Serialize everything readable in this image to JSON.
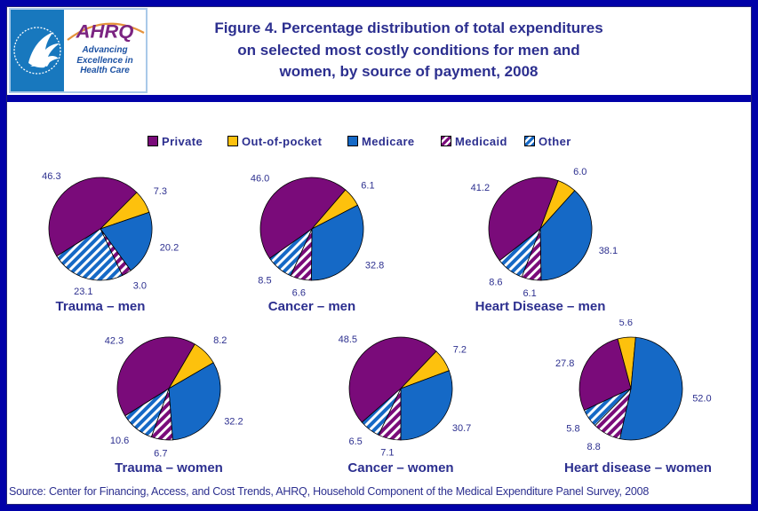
{
  "header": {
    "logo": {
      "seal_text": "DEPARTMENT OF HEALTH & HUMAN SERVICES · USA",
      "ahrq_acronym": "AHRQ",
      "tagline_lines": [
        "Advancing",
        "Excellence in",
        "Health Care"
      ]
    },
    "title_lines": [
      "Figure 4. Percentage distribution of total expenditures",
      "on selected most costly conditions for men and",
      "women, by source of payment, 2008"
    ]
  },
  "legend": {
    "position": "top",
    "items": [
      {
        "label": "Private",
        "swatch": "private"
      },
      {
        "label": "Out-of-pocket",
        "swatch": "out_of_pocket"
      },
      {
        "label": "Medicare",
        "swatch": "medicare"
      },
      {
        "label": "Medicaid",
        "swatch": "medicaid"
      },
      {
        "label": "Other",
        "swatch": "other"
      }
    ]
  },
  "colors": {
    "private": "#7a0b7a",
    "out_of_pocket": "#fdc10d",
    "medicare": "#1569c6",
    "medicaid_base": "#7a0b7a",
    "other_base": "#1569c6",
    "stripe": "#ffffff",
    "text": "#2c2f8f",
    "frame_blue": "#0101a8",
    "frame_navy": "#232377"
  },
  "chart_data": {
    "type": "pie",
    "unit": "percent",
    "categories": [
      "Private",
      "Out-of-pocket",
      "Medicare",
      "Medicaid",
      "Other"
    ],
    "legend_position": "top",
    "pies": [
      {
        "label": "Trauma – men",
        "values": [
          46.3,
          7.3,
          20.2,
          3.0,
          23.1
        ],
        "rotation_deg": 238
      },
      {
        "label": "Cancer – men",
        "values": [
          46.0,
          6.1,
          32.8,
          6.6,
          8.5
        ],
        "rotation_deg": 235
      },
      {
        "label": "Heart Disease – men",
        "values": [
          41.2,
          6.0,
          38.1,
          6.1,
          8.6
        ],
        "rotation_deg": 232
      },
      {
        "label": "Trauma – women",
        "values": [
          42.3,
          8.2,
          32.2,
          6.7,
          10.6
        ],
        "rotation_deg": 238
      },
      {
        "label": "Cancer – women",
        "values": [
          48.5,
          7.2,
          30.7,
          7.1,
          6.5
        ],
        "rotation_deg": 229
      },
      {
        "label": "Heart disease – women",
        "values": [
          27.8,
          5.6,
          52.0,
          8.8,
          5.8
        ],
        "rotation_deg": 245
      }
    ]
  },
  "source": "Source: Center for Financing, Access, and Cost Trends, AHRQ, Household Component of the Medical Expenditure Panel Survey, 2008"
}
